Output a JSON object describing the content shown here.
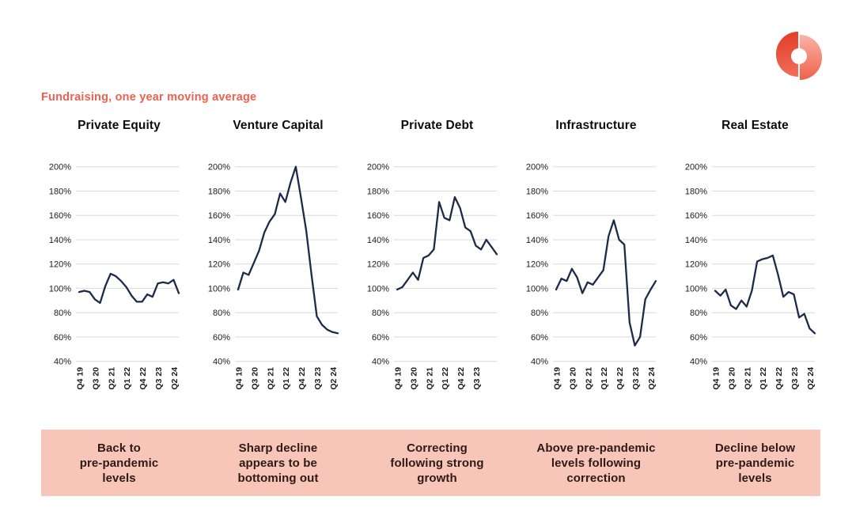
{
  "header": {
    "title": "Fundraising, one year moving average"
  },
  "colors": {
    "accent_title": "#f15f4d",
    "line": "#1c2b4a",
    "grid": "#d9d9d9",
    "axis_text": "#1a1a1a",
    "banner_bg": "#f8c5b9",
    "banner_text": "#2d1a16",
    "logo_left_top": "#e23a24",
    "logo_left_bottom": "#f0705d",
    "logo_right_top": "#fbb3a6",
    "logo_right_bottom": "#ef614a"
  },
  "chart_data": [
    {
      "type": "line",
      "title": "Private Equity",
      "ylim": [
        40,
        200
      ],
      "yticks": [
        200,
        180,
        160,
        140,
        120,
        100,
        80,
        60,
        40
      ],
      "ytick_suffix": "%",
      "x_start": "Q4 19",
      "x_frequency": "quarterly",
      "x_tick_labels": [
        "Q4 19",
        "Q3 20",
        "Q2 21",
        "Q1 22",
        "Q4 22",
        "Q3 23",
        "Q2 24"
      ],
      "x_tick_indices": [
        0,
        3,
        6,
        9,
        12,
        15,
        18
      ],
      "values": [
        97,
        98,
        97,
        91,
        88,
        102,
        112,
        110,
        106,
        101,
        94,
        89,
        89,
        95,
        93,
        104,
        105,
        104,
        107,
        96
      ]
    },
    {
      "type": "line",
      "title": "Venture Capital",
      "ylim": [
        40,
        200
      ],
      "yticks": [
        200,
        180,
        160,
        140,
        120,
        100,
        80,
        60,
        40
      ],
      "ytick_suffix": "%",
      "x_start": "Q4 19",
      "x_frequency": "quarterly",
      "x_tick_labels": [
        "Q4 19",
        "Q3 20",
        "Q2 21",
        "Q1 22",
        "Q4 22",
        "Q3 23",
        "Q2 24"
      ],
      "x_tick_indices": [
        0,
        3,
        6,
        9,
        12,
        15,
        18
      ],
      "values": [
        99,
        113,
        111,
        121,
        131,
        146,
        155,
        161,
        178,
        171,
        187,
        200,
        174,
        147,
        111,
        77,
        70,
        66,
        64,
        63
      ]
    },
    {
      "type": "line",
      "title": "Private Debt",
      "ylim": [
        40,
        200
      ],
      "yticks": [
        200,
        180,
        160,
        140,
        120,
        100,
        80,
        60,
        40
      ],
      "ytick_suffix": "%",
      "x_start": "Q4 19",
      "x_frequency": "quarterly",
      "x_tick_labels": [
        "Q4 19",
        "Q3 20",
        "Q2 21",
        "Q1 22",
        "Q4 22",
        "Q3 23"
      ],
      "x_tick_indices": [
        0,
        3,
        6,
        9,
        12,
        15
      ],
      "values": [
        99,
        101,
        107,
        113,
        107,
        125,
        127,
        132,
        171,
        158,
        156,
        175,
        166,
        150,
        147,
        135,
        132,
        140,
        134,
        128
      ]
    },
    {
      "type": "line",
      "title": "Infrastructure",
      "ylim": [
        40,
        200
      ],
      "yticks": [
        200,
        180,
        160,
        140,
        120,
        100,
        80,
        60,
        40
      ],
      "ytick_suffix": "%",
      "x_start": "Q4 19",
      "x_frequency": "quarterly",
      "x_tick_labels": [
        "Q4 19",
        "Q3 20",
        "Q2 21",
        "Q1 22",
        "Q4 22",
        "Q3 23",
        "Q2 24"
      ],
      "x_tick_indices": [
        0,
        3,
        6,
        9,
        12,
        15,
        18
      ],
      "values": [
        99,
        108,
        106,
        116,
        109,
        96,
        105,
        103,
        109,
        115,
        143,
        156,
        140,
        136,
        72,
        53,
        60,
        91,
        99,
        106
      ]
    },
    {
      "type": "line",
      "title": "Real Estate",
      "ylim": [
        40,
        200
      ],
      "yticks": [
        200,
        180,
        160,
        140,
        120,
        100,
        80,
        60,
        40
      ],
      "ytick_suffix": "%",
      "x_start": "Q4 19",
      "x_frequency": "quarterly",
      "x_tick_labels": [
        "Q4 19",
        "Q3 20",
        "Q2 21",
        "Q1 22",
        "Q4 22",
        "Q3 23",
        "Q2 24"
      ],
      "x_tick_indices": [
        0,
        3,
        6,
        9,
        12,
        15,
        18
      ],
      "values": [
        98,
        94,
        99,
        86,
        83,
        90,
        85,
        98,
        122,
        124,
        125,
        127,
        111,
        93,
        97,
        95,
        76,
        79,
        67,
        63
      ]
    }
  ],
  "banner": {
    "captions": [
      "Back to\npre-pandemic\nlevels",
      "Sharp decline\nappears to be\nbottoming out",
      "Correcting\nfollowing strong\ngrowth",
      "Above pre-pandemic\nlevels following\ncorrection",
      "Decline below\npre-pandemic\nlevels"
    ]
  }
}
